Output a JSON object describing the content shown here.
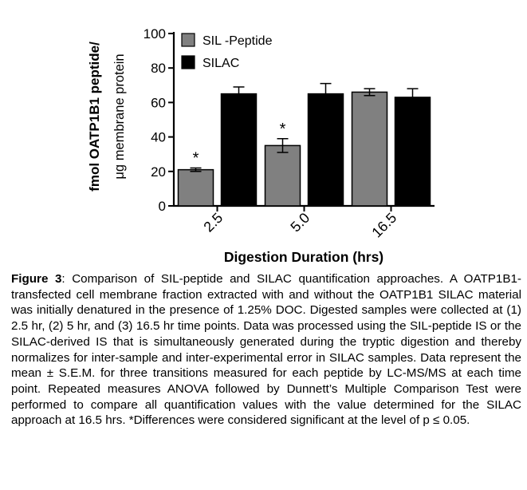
{
  "chart_data": {
    "type": "bar",
    "categories": [
      "2.5",
      "5.0",
      "16.5"
    ],
    "series": [
      {
        "name": "SIL -Peptide",
        "values": [
          21,
          35,
          66
        ],
        "errors": [
          1,
          4,
          2
        ],
        "color": "#808080",
        "significance": [
          "*",
          "*",
          ""
        ]
      },
      {
        "name": "SILAC",
        "values": [
          65,
          65,
          63
        ],
        "errors": [
          4,
          6,
          5
        ],
        "color": "#000000",
        "significance": [
          "",
          "",
          ""
        ]
      }
    ],
    "ylabel_line1": "fmol OATP1B1 peptide/",
    "ylabel_line2": "μg membrane protein",
    "xlabel": "Digestion Duration (hrs)",
    "ylim": [
      0,
      100
    ],
    "yticks": [
      "0",
      "20",
      "40",
      "60",
      "80",
      "100"
    ],
    "legend_position": "top-left"
  },
  "caption": {
    "label": "Figure 3",
    "text": ": Comparison of SIL-peptide and SILAC quantification approaches. A OATP1B1-transfected cell membrane fraction extracted with and without the OATP1B1 SILAC material was initially denatured in the presence of 1.25% DOC. Digested samples were collected at (1) 2.5 hr, (2) 5 hr, and (3) 16.5 hr time points. Data was processed using the SIL-peptide IS or the SILAC-derived IS that is simultaneously generated during the tryptic digestion and thereby normalizes for inter-sample and inter-experimental error in SILAC samples. Data represent the mean ± S.E.M. for three transitions measured for each peptide by LC-MS/MS at each time point. Repeated measures ANOVA followed by Dunnett’s Multiple Comparison Test were performed to compare all quantification values with the value determined for the SILAC approach at 16.5 hrs. *Differences were considered significant at the level of p ≤ 0.05."
  }
}
